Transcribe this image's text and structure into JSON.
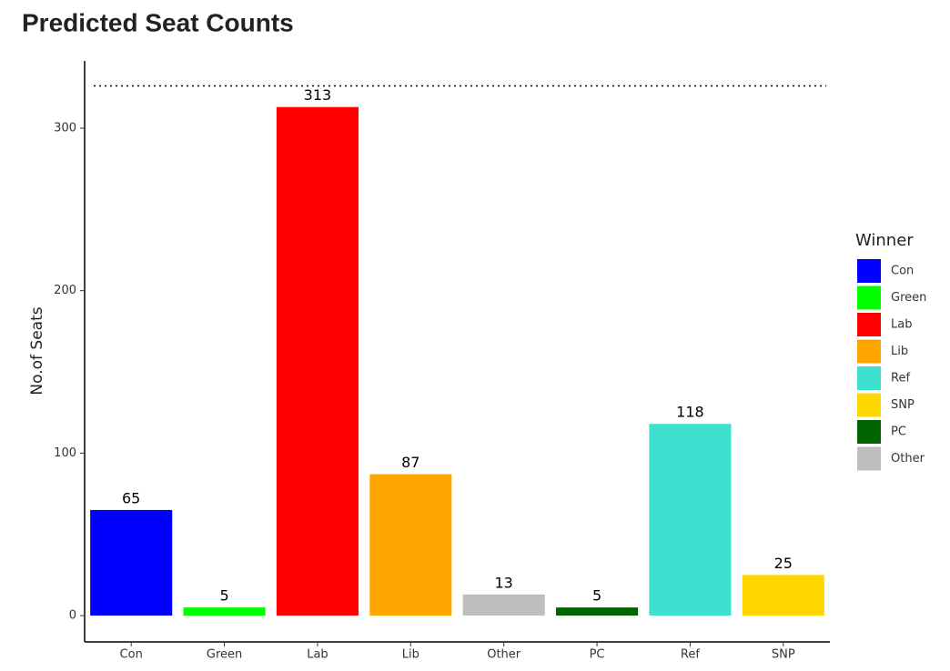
{
  "chart_data": {
    "type": "bar",
    "title": "Predicted Seat Counts",
    "y_label": "No.of Seats",
    "categories": [
      "Con",
      "Green",
      "Lab",
      "Lib",
      "Other",
      "PC",
      "Ref",
      "SNP"
    ],
    "values": [
      65,
      5,
      313,
      87,
      13,
      5,
      118,
      25
    ],
    "colors": [
      "#0000ff",
      "#00ff00",
      "#ff0000",
      "#ffa500",
      "#bebebe",
      "#006400",
      "#40e0d0",
      "#ffd700"
    ],
    "ylim": [
      -16.2,
      341.4
    ],
    "yticks": [
      0,
      100,
      200,
      300
    ],
    "reference_line": 326,
    "legend_title": "Winner",
    "legend": [
      {
        "name": "Con",
        "color": "#0000ff"
      },
      {
        "name": "Green",
        "color": "#00ff00"
      },
      {
        "name": "Lab",
        "color": "#ff0000"
      },
      {
        "name": "Lib",
        "color": "#ffa500"
      },
      {
        "name": "Ref",
        "color": "#40e0d0"
      },
      {
        "name": "SNP",
        "color": "#ffd700"
      },
      {
        "name": "PC",
        "color": "#006400"
      },
      {
        "name": "Other",
        "color": "#bebebe"
      }
    ]
  }
}
